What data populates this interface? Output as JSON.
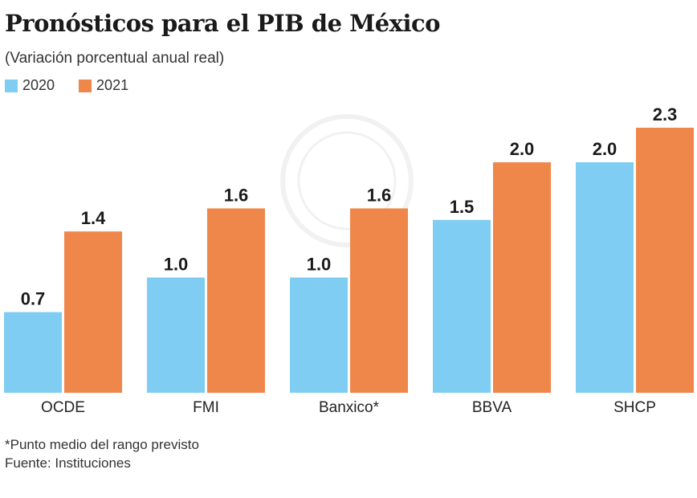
{
  "chart_data": {
    "type": "bar",
    "title": "Pronósticos para el PIB de México",
    "subtitle": "(Variación porcentual anual real)",
    "categories": [
      "OCDE",
      "FMI",
      "Banxico*",
      "BBVA",
      "SHCP"
    ],
    "series": [
      {
        "name": "2020",
        "color": "#7fcdf3",
        "values": [
          0.7,
          1.0,
          1.0,
          1.5,
          2.0
        ]
      },
      {
        "name": "2021",
        "color": "#f0874a",
        "values": [
          1.4,
          1.6,
          1.6,
          2.0,
          2.3
        ]
      }
    ],
    "ylim": [
      0,
      2.3
    ],
    "grid": false,
    "legend": "top-left",
    "data_labels": true
  },
  "footnote": "*Punto medio del rango previsto",
  "source": "Fuente: Instituciones"
}
